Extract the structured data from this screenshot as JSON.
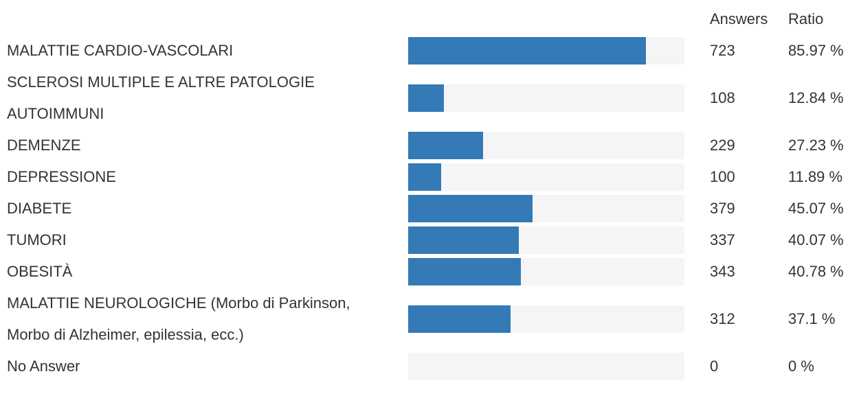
{
  "chart_data": {
    "type": "bar",
    "columns": [
      "Answers",
      "Ratio"
    ],
    "categories": [
      "MALATTIE CARDIO-VASCOLARI",
      "SCLEROSI MULTIPLE E ALTRE PATOLOGIE AUTOIMMUNI",
      "DEMENZE",
      "DEPRESSIONE",
      "DIABETE",
      "TUMORI",
      "OBESITÀ",
      "MALATTIE NEUROLOGICHE (Morbo di Parkinson, Morbo di Alzheimer, epilessia, ecc.)",
      "No Answer"
    ],
    "answers": [
      723,
      108,
      229,
      100,
      379,
      337,
      343,
      312,
      0
    ],
    "values": [
      85.97,
      12.84,
      27.23,
      11.89,
      45.07,
      40.07,
      40.78,
      37.1,
      0
    ],
    "value_labels": [
      "85.97 %",
      "12.84 %",
      "27.23 %",
      "11.89 %",
      "45.07 %",
      "40.07 %",
      "40.78 %",
      "37.1 %",
      "0 %"
    ],
    "xlim": [
      0,
      100
    ],
    "color": "#337ab7"
  }
}
